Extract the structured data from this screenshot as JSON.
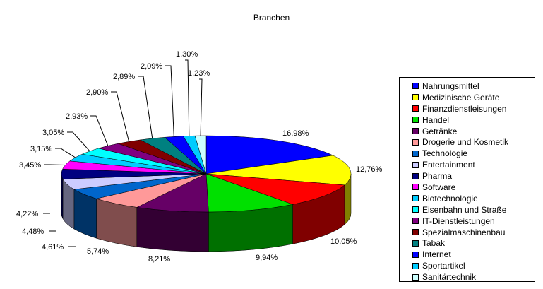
{
  "chart_data": {
    "type": "pie",
    "title": "Branchen",
    "legend_position": "right",
    "slices": [
      {
        "label": "Nahrungsmittel",
        "percent_label": "16,98%",
        "value": 16.98,
        "color": "#0000ff"
      },
      {
        "label": "Medizinische Geräte",
        "percent_label": "12,76%",
        "value": 12.76,
        "color": "#ffff00"
      },
      {
        "label": "Finanzdienstleisungen",
        "percent_label": "10,05%",
        "value": 10.05,
        "color": "#ff0000"
      },
      {
        "label": "Handel",
        "percent_label": "9,94%",
        "value": 9.94,
        "color": "#00e000"
      },
      {
        "label": "Getränke",
        "percent_label": "8,21%",
        "value": 8.21,
        "color": "#660066"
      },
      {
        "label": "Drogerie und Kosmetik",
        "percent_label": "5,74%",
        "value": 5.74,
        "color": "#ff9999"
      },
      {
        "label": "Technologie",
        "percent_label": "4,61%",
        "value": 4.61,
        "color": "#0066cc"
      },
      {
        "label": "Entertainment",
        "percent_label": "4,48%",
        "value": 4.48,
        "color": "#ccccff"
      },
      {
        "label": "Pharma",
        "percent_label": "4,22%",
        "value": 4.22,
        "color": "#000080"
      },
      {
        "label": "Software",
        "percent_label": "3,45%",
        "value": 3.45,
        "color": "#ff00ff"
      },
      {
        "label": "Biotechnologie",
        "percent_label": "3,15%",
        "value": 3.15,
        "color": "#00ccff"
      },
      {
        "label": "Eisenbahn und Straße",
        "percent_label": "3,05%",
        "value": 3.05,
        "color": "#00ffff"
      },
      {
        "label": "IT-Dienstleistungen",
        "percent_label": "2,93%",
        "value": 2.93,
        "color": "#800080"
      },
      {
        "label": "Spezialmaschinenbau",
        "percent_label": "2,90%",
        "value": 2.9,
        "color": "#800000"
      },
      {
        "label": "Tabak",
        "percent_label": "2,89%",
        "value": 2.89,
        "color": "#008080"
      },
      {
        "label": "Internet",
        "percent_label": "2,09%",
        "value": 2.09,
        "color": "#0000ff"
      },
      {
        "label": "Sportartikel",
        "percent_label": "1,30%",
        "value": 1.3,
        "color": "#00ccff"
      },
      {
        "label": "Sanitärtechnik",
        "percent_label": "1,23%",
        "value": 1.23,
        "color": "#ccffff"
      }
    ]
  }
}
